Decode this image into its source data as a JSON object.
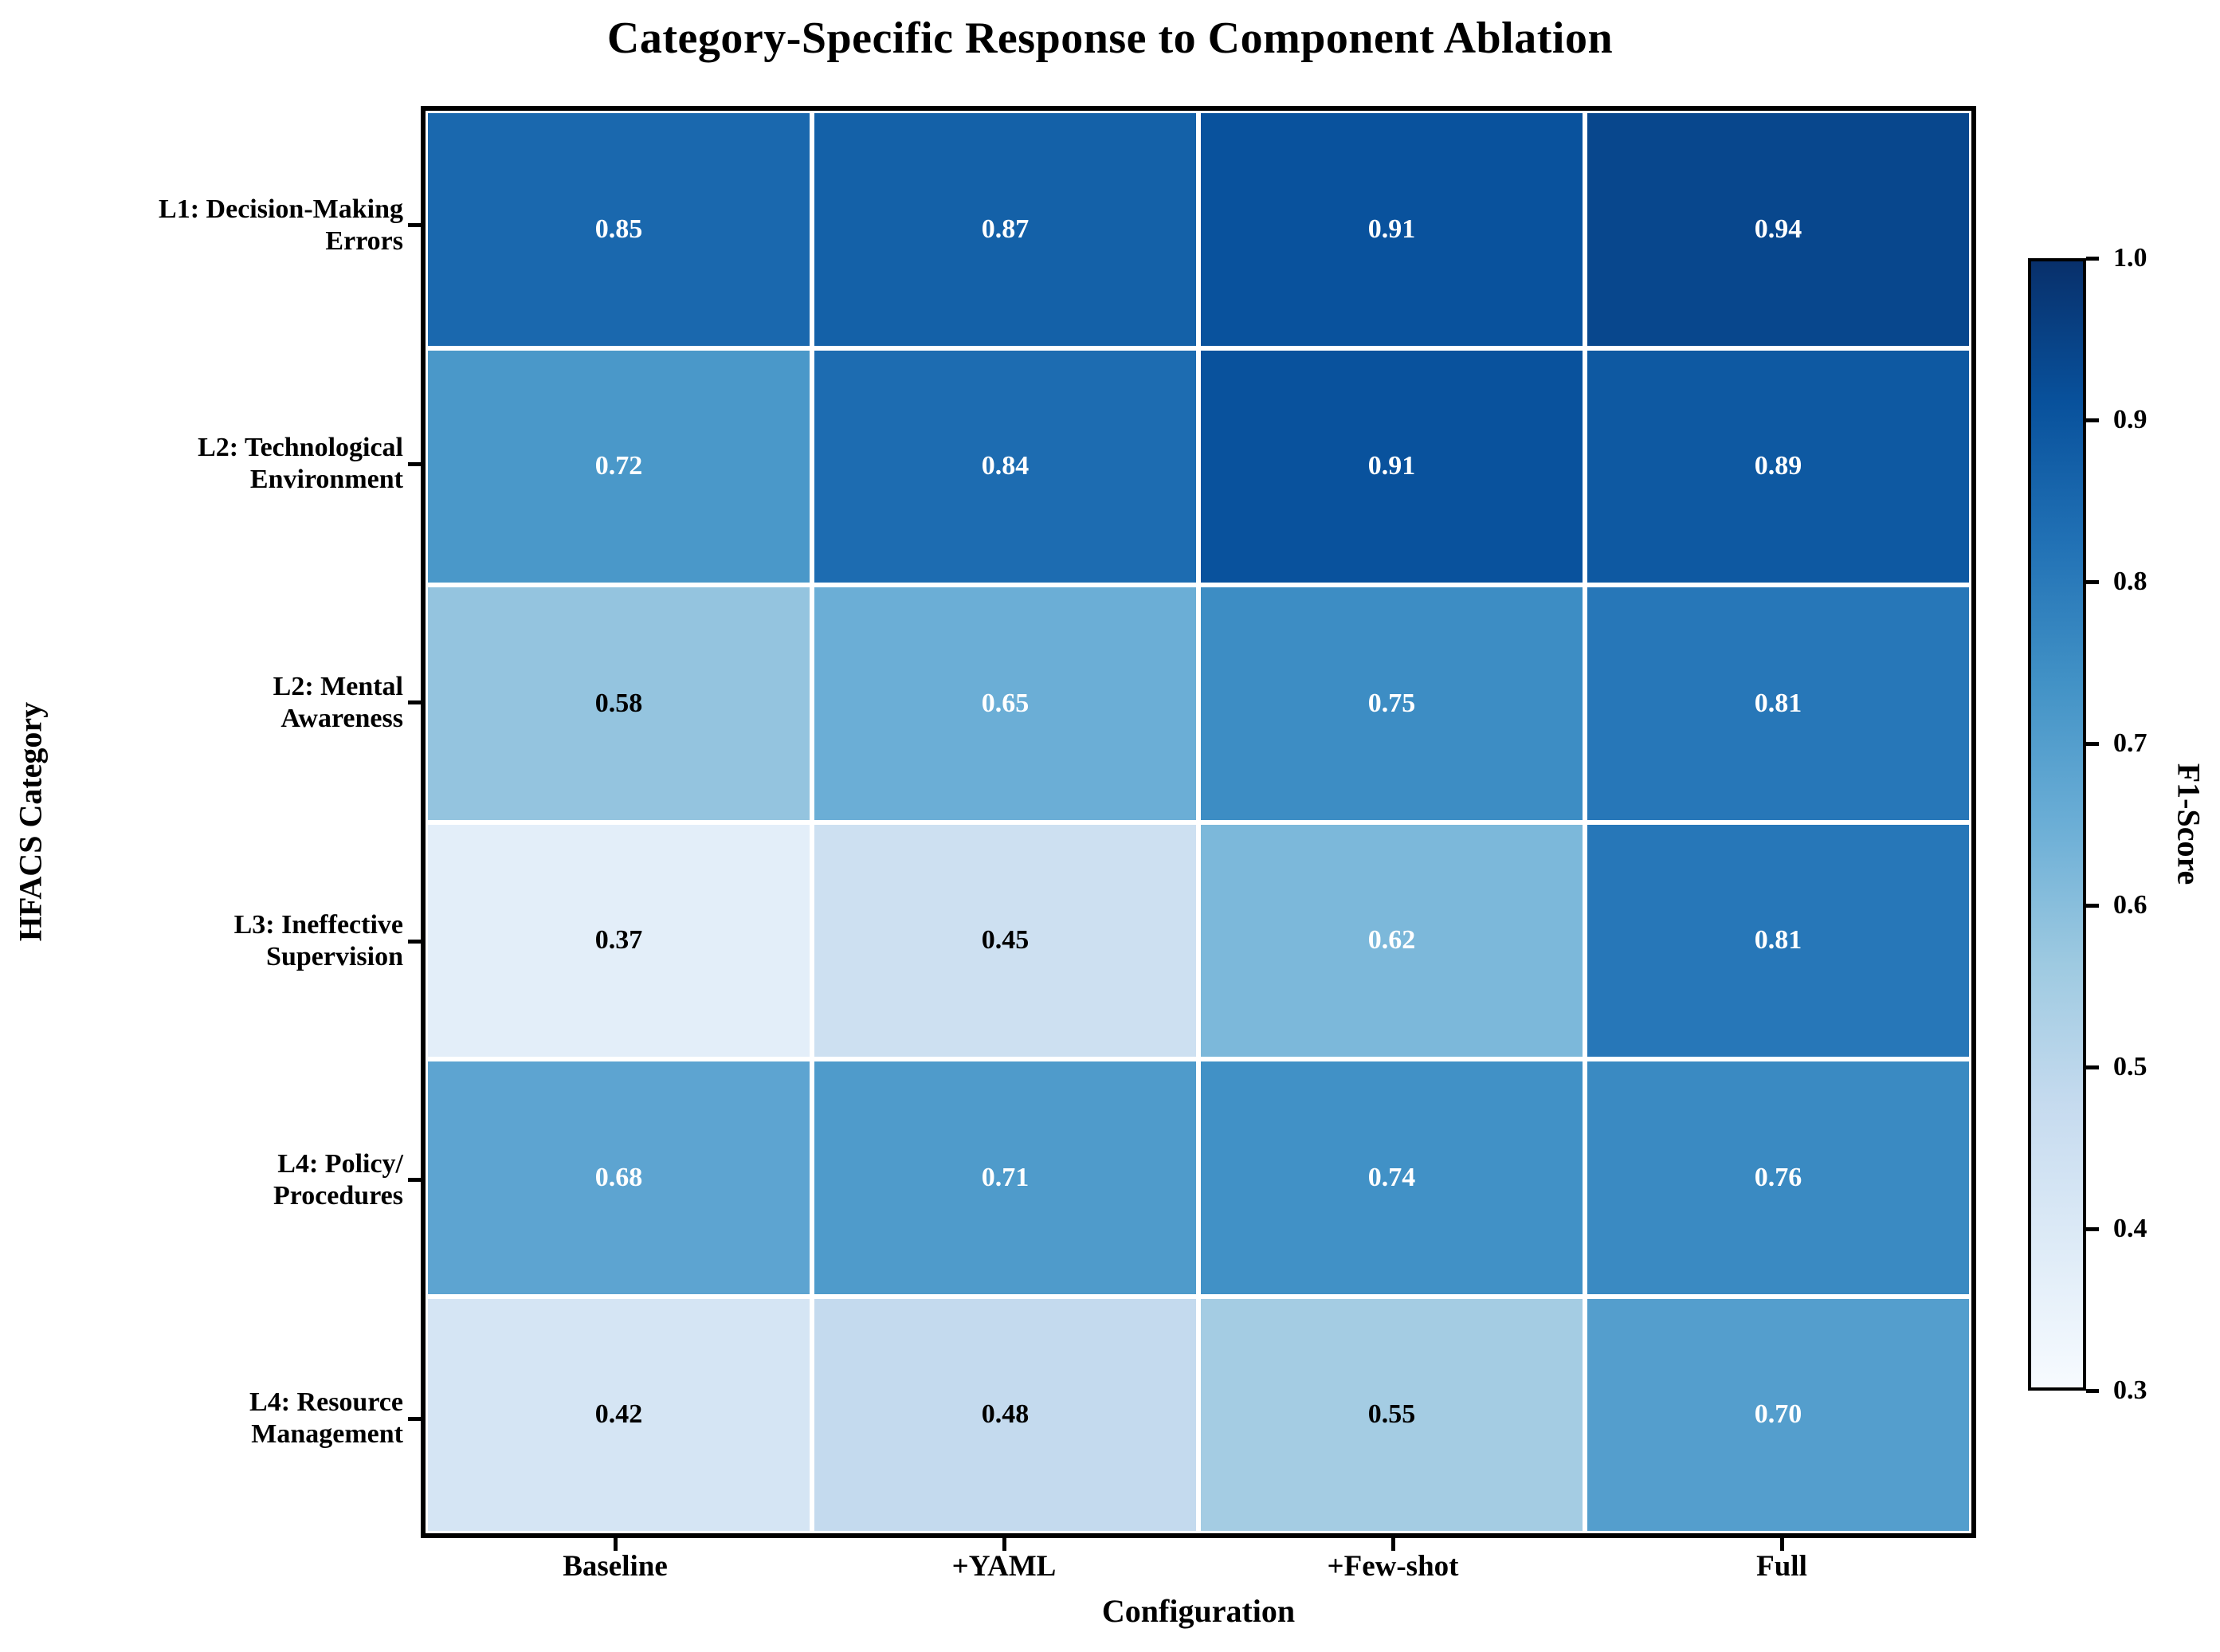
{
  "chart_data": {
    "type": "heatmap",
    "title": "Category-Specific Response to Component Ablation",
    "xlabel": "Configuration",
    "ylabel": "HFACS Category",
    "columns": [
      "Baseline",
      "+YAML",
      "+Few-shot",
      "Full"
    ],
    "rows": [
      "L1: Decision-Making\nErrors",
      "L2: Technological\nEnvironment",
      "L2: Mental\nAwareness",
      "L3: Ineffective\nSupervision",
      "L4: Policy/\nProcedures",
      "L4: Resource\nManagement"
    ],
    "values": [
      [
        0.85,
        0.87,
        0.91,
        0.94
      ],
      [
        0.72,
        0.84,
        0.91,
        0.89
      ],
      [
        0.58,
        0.65,
        0.75,
        0.81
      ],
      [
        0.37,
        0.45,
        0.62,
        0.81
      ],
      [
        0.68,
        0.71,
        0.74,
        0.76
      ],
      [
        0.42,
        0.48,
        0.55,
        0.7
      ]
    ],
    "value_decimals": 2,
    "vmin": 0.3,
    "vmax": 1.0,
    "colormap": "Blues",
    "colormap_anchors": [
      "#f7fbff",
      "#deebf7",
      "#c6dbef",
      "#9ecae1",
      "#6baed6",
      "#4292c6",
      "#2171b5",
      "#08519c",
      "#08306b"
    ],
    "cell_text": {
      "light_color": "#ffffff",
      "dark_color": "#000000",
      "white_text_threshold": 0.6
    },
    "grid_line_color": "#ffffff",
    "frame_color": "#000000",
    "colorbar": {
      "label": "F1-Score",
      "ticks": [
        0.3,
        0.4,
        0.5,
        0.6,
        0.7,
        0.8,
        0.9,
        1.0
      ],
      "tick_decimals": 1
    },
    "legend": "none",
    "grid": false
  }
}
